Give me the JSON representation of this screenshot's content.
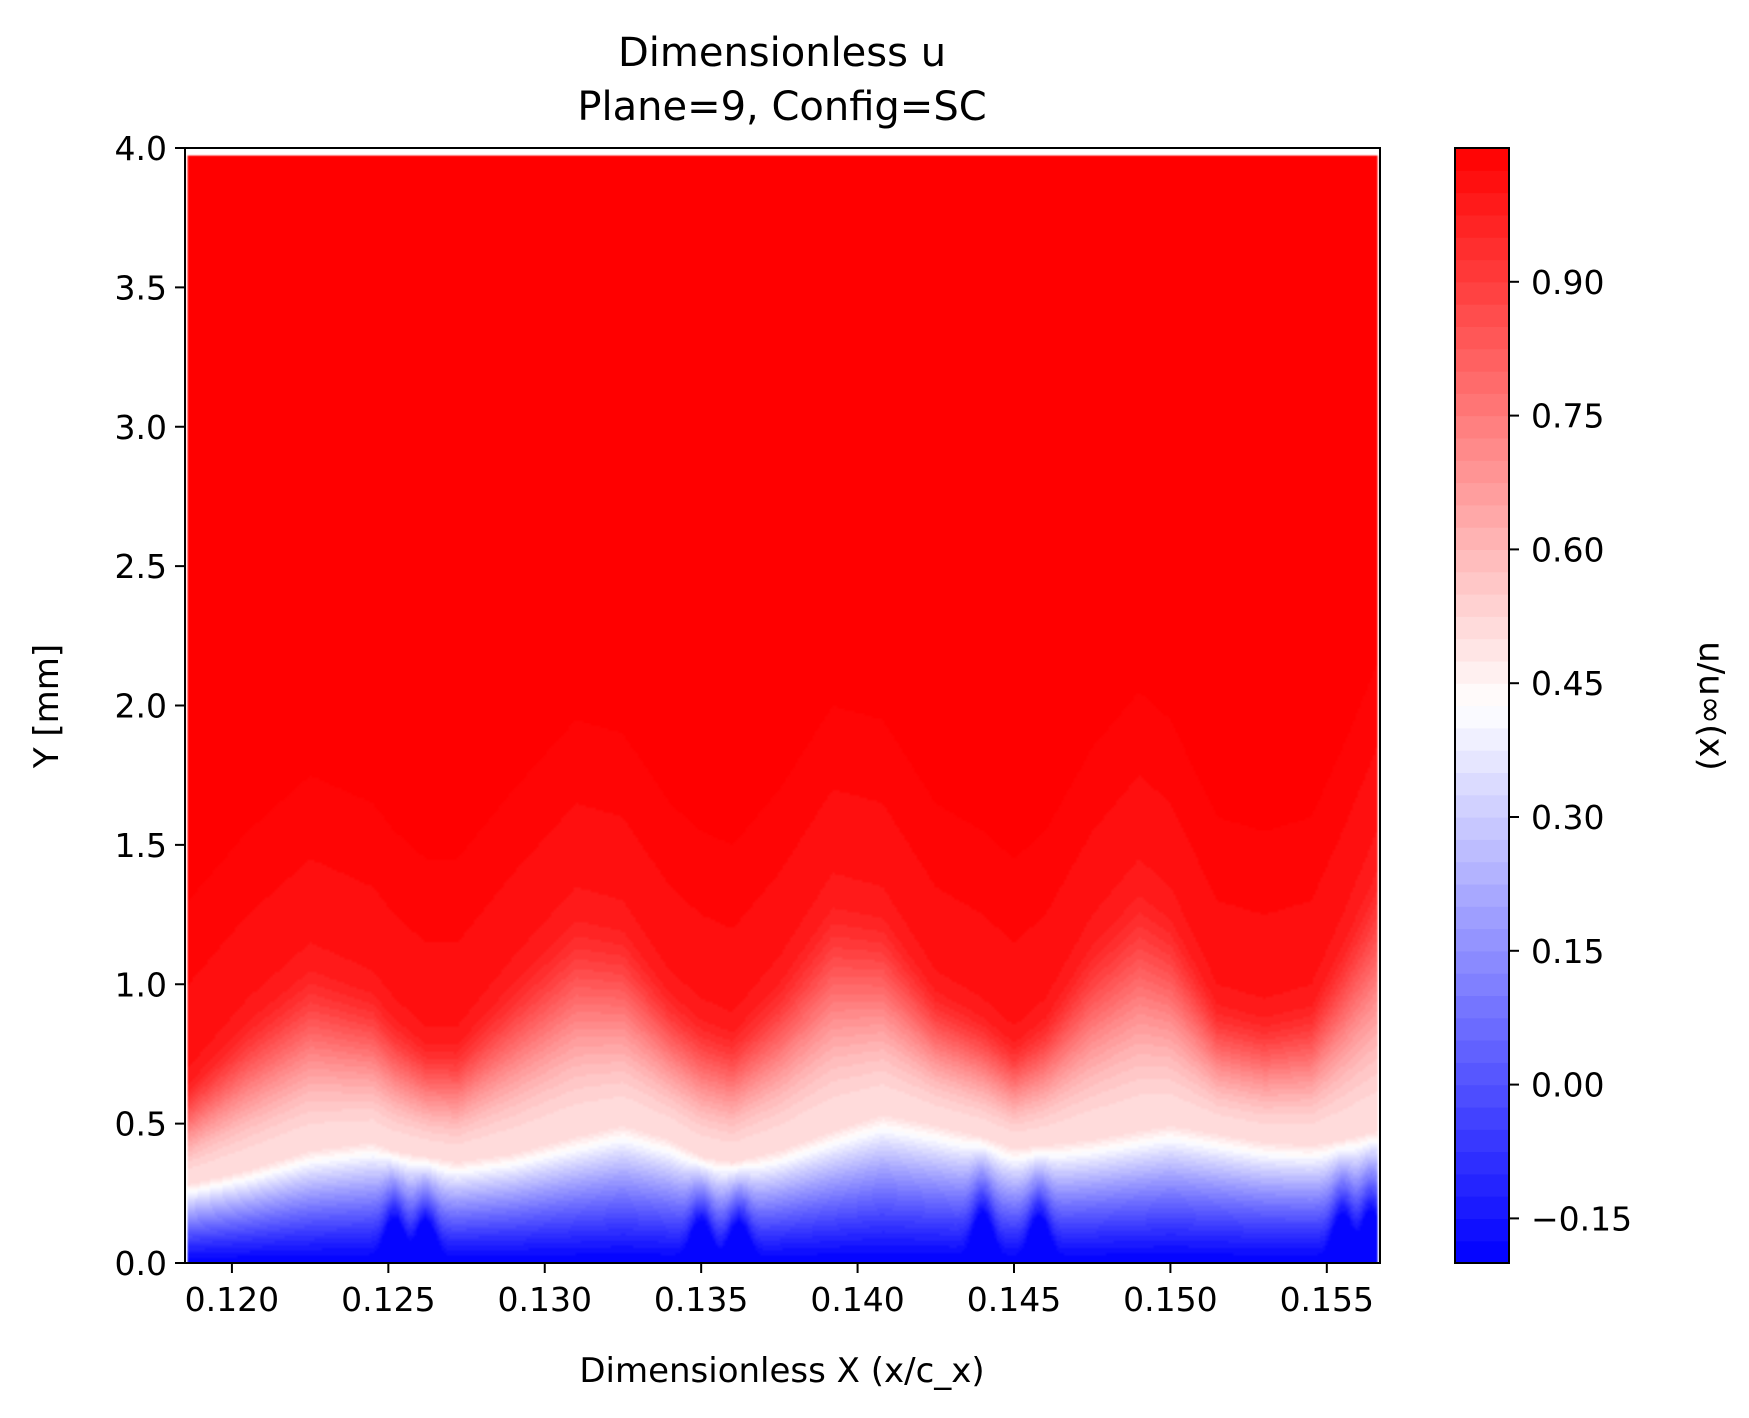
{
  "chart_data": {
    "type": "heatmap",
    "title": "Dimensionless u",
    "subtitle": "Plane=9, Config=SC",
    "xlabel": "Dimensionless X (x/c_x)",
    "ylabel": "Y [mm]",
    "colorbar_label": "u/u∞(x)",
    "xlim": [
      0.1185,
      0.1567
    ],
    "ylim": [
      0.0,
      4.0
    ],
    "data_x_range": [
      0.1186,
      0.1566
    ],
    "data_y_max": 3.97,
    "clim": [
      -0.2,
      1.05
    ],
    "x_ticks": [
      0.12,
      0.125,
      0.13,
      0.135,
      0.14,
      0.145,
      0.15,
      0.155
    ],
    "x_tick_labels": [
      "0.120",
      "0.125",
      "0.130",
      "0.135",
      "0.140",
      "0.145",
      "0.150",
      "0.155"
    ],
    "y_ticks": [
      0.0,
      0.5,
      1.0,
      1.5,
      2.0,
      2.5,
      3.0,
      3.5,
      4.0
    ],
    "y_tick_labels": [
      "0.0",
      "0.5",
      "1.0",
      "1.5",
      "2.0",
      "2.5",
      "3.0",
      "3.5",
      "4.0"
    ],
    "colorbar_ticks": [
      -0.15,
      0.0,
      0.15,
      0.3,
      0.45,
      0.6,
      0.75,
      0.9
    ],
    "colorbar_tick_labels": [
      "−0.15",
      "0.00",
      "0.15",
      "0.30",
      "0.45",
      "0.60",
      "0.75",
      "0.90"
    ],
    "colormap": [
      "#0000ff",
      "#ffffff",
      "#ff0000"
    ],
    "contour_levels": 50,
    "profile_x": [
      0.1186,
      0.1205,
      0.1225,
      0.1245,
      0.1252,
      0.1262,
      0.1272,
      0.129,
      0.131,
      0.1325,
      0.134,
      0.135,
      0.136,
      0.1375,
      0.1392,
      0.1408,
      0.1425,
      0.144,
      0.145,
      0.146,
      0.1475,
      0.149,
      0.15,
      0.1515,
      0.153,
      0.1545,
      0.1555,
      0.1566
    ],
    "halfvel_height": [
      0.28,
      0.33,
      0.4,
      0.43,
      0.4,
      0.38,
      0.36,
      0.39,
      0.45,
      0.49,
      0.44,
      0.38,
      0.36,
      0.4,
      0.47,
      0.53,
      0.49,
      0.45,
      0.41,
      0.42,
      0.44,
      0.47,
      0.49,
      0.46,
      0.43,
      0.42,
      0.44,
      0.47
    ],
    "edge_height": [
      0.7,
      0.95,
      1.15,
      1.05,
      0.95,
      0.85,
      0.85,
      1.1,
      1.35,
      1.3,
      1.05,
      0.95,
      0.9,
      1.1,
      1.4,
      1.35,
      1.05,
      0.95,
      0.85,
      0.95,
      1.25,
      1.45,
      1.35,
      1.0,
      0.95,
      1.0,
      1.25,
      1.55
    ],
    "low_velocity_streaks_x": [
      0.1252,
      0.1262,
      0.135,
      0.1362,
      0.144,
      0.1458,
      0.1555,
      0.1564
    ]
  }
}
